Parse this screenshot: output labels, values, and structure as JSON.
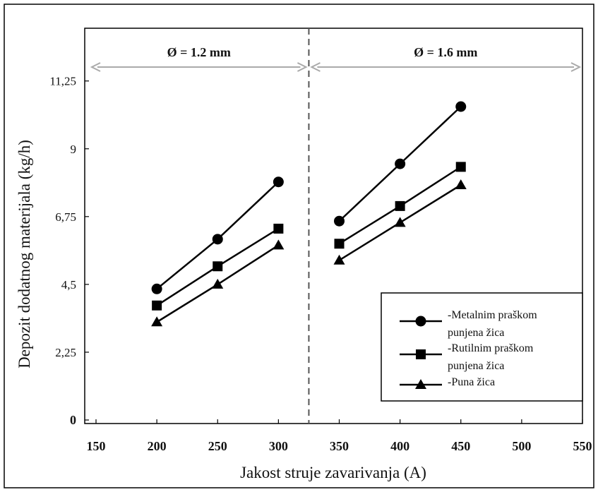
{
  "chart_data": {
    "type": "line",
    "xlabel": "Jakost struje zavarivanja (A)",
    "ylabel": "Depozit dodatnog materijala (kg/h)",
    "xlim": [
      150,
      550
    ],
    "ylim": [
      0,
      13
    ],
    "x_ticks": [
      "150",
      "200",
      "250",
      "300",
      "350",
      "400",
      "450",
      "500",
      "550"
    ],
    "y_ticks": [
      "0",
      "2,25",
      "4,5",
      "6,75",
      "9",
      "11,25"
    ],
    "y_tick_values": [
      0,
      2.25,
      4.5,
      6.75,
      9,
      11.25
    ],
    "regions": [
      {
        "label": "Ø = 1.2 mm",
        "from": 150,
        "to": 325
      },
      {
        "label": "Ø = 1.6 mm",
        "from": 325,
        "to": 550
      }
    ],
    "divider_x": 325,
    "grid": false,
    "legend_position": "bottom-right",
    "series": [
      {
        "name": "-Metalnim praškom punjena žica",
        "legend_lines": [
          "-Metalnim praškom",
          "punjena žica"
        ],
        "marker": "circle",
        "x": [
          200,
          250,
          300,
          350,
          400,
          450
        ],
        "y": [
          4.35,
          6.0,
          7.9,
          6.6,
          8.5,
          10.4
        ]
      },
      {
        "name": "-Rutilnim praškom punjena žica",
        "legend_lines": [
          "-Rutilnim praškom",
          "punjena žica"
        ],
        "marker": "square",
        "x": [
          200,
          250,
          300,
          350,
          400,
          450
        ],
        "y": [
          3.8,
          5.1,
          6.35,
          5.85,
          7.1,
          8.4
        ]
      },
      {
        "name": "-Puna žica",
        "legend_lines": [
          "-Puna žica"
        ],
        "marker": "triangle",
        "x": [
          200,
          250,
          300,
          350,
          400,
          450
        ],
        "y": [
          3.25,
          4.5,
          5.8,
          5.3,
          6.55,
          7.8
        ]
      }
    ]
  }
}
